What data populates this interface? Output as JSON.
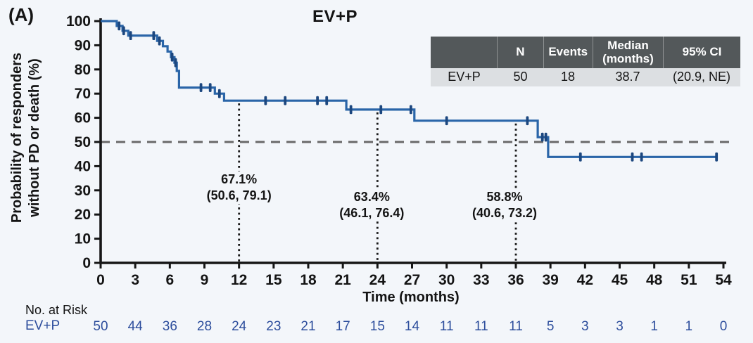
{
  "panel_label": "(A)",
  "chart_data": {
    "type": "line",
    "subtype": "kaplan-meier-step",
    "title": "EV+P",
    "xlabel": "Time (months)",
    "ylabel_line1": "Probability of responders",
    "ylabel_line2": "without PD or death (%)",
    "xlim": [
      0,
      54
    ],
    "ylim": [
      0,
      100
    ],
    "xticks": [
      0,
      3,
      6,
      9,
      12,
      15,
      18,
      21,
      24,
      27,
      30,
      33,
      36,
      39,
      42,
      45,
      48,
      51,
      54
    ],
    "yticks": [
      0,
      10,
      20,
      30,
      40,
      50,
      60,
      70,
      80,
      90,
      100
    ],
    "grid": false,
    "legend": "none",
    "reference_line_y": 50,
    "series": [
      {
        "name": "EV+P",
        "color": "#2a65a8",
        "censor_color": "#1c477f",
        "steps": [
          [
            0,
            100
          ],
          [
            1.4,
            98
          ],
          [
            1.9,
            96
          ],
          [
            2.4,
            94
          ],
          [
            4.9,
            91.8
          ],
          [
            5.4,
            89.6
          ],
          [
            5.8,
            87.4
          ],
          [
            6.1,
            85.1
          ],
          [
            6.4,
            82.8
          ],
          [
            6.6,
            79.4
          ],
          [
            6.8,
            72.5
          ],
          [
            9.9,
            70.0
          ],
          [
            10.7,
            67.1
          ],
          [
            21.3,
            63.4
          ],
          [
            27.2,
            58.8
          ],
          [
            37.9,
            52.0
          ],
          [
            38.8,
            43.8
          ]
        ],
        "end_time": 53.4,
        "censors": [
          [
            1.6,
            98
          ],
          [
            2.0,
            96
          ],
          [
            2.6,
            94
          ],
          [
            4.6,
            94
          ],
          [
            5.1,
            91.8
          ],
          [
            6.2,
            85.1
          ],
          [
            6.5,
            82.8
          ],
          [
            8.7,
            72.5
          ],
          [
            9.5,
            72.5
          ],
          [
            10.3,
            70.0
          ],
          [
            14.3,
            67.1
          ],
          [
            16.0,
            67.1
          ],
          [
            18.8,
            67.1
          ],
          [
            19.6,
            67.1
          ],
          [
            21.7,
            63.4
          ],
          [
            24.3,
            63.4
          ],
          [
            26.9,
            63.4
          ],
          [
            30.0,
            58.8
          ],
          [
            37.0,
            58.8
          ],
          [
            38.3,
            52.0
          ],
          [
            38.6,
            52.0
          ],
          [
            41.6,
            43.8
          ],
          [
            46.1,
            43.8
          ],
          [
            46.9,
            43.8
          ],
          [
            53.4,
            43.8
          ]
        ]
      }
    ],
    "landmarks": [
      {
        "x": 12,
        "pct": "67.1%",
        "ci": "(50.6, 79.1)"
      },
      {
        "x": 24,
        "pct": "63.4%",
        "ci": "(46.1, 76.4)"
      },
      {
        "x": 36,
        "pct": "58.8%",
        "ci": "(40.6, 73.2)"
      }
    ]
  },
  "inset_table": {
    "headers": [
      "",
      "N",
      "Events",
      "Median (months)",
      "95% CI"
    ],
    "rows": [
      [
        "EV+P",
        "50",
        "18",
        "38.7",
        "(20.9, NE)"
      ]
    ]
  },
  "risk_table": {
    "section_label": "No. at Risk",
    "row_label": "EV+P",
    "times": [
      0,
      3,
      6,
      9,
      12,
      15,
      18,
      21,
      24,
      27,
      30,
      33,
      36,
      39,
      42,
      45,
      48,
      51,
      54
    ],
    "values": [
      50,
      44,
      36,
      28,
      24,
      23,
      21,
      17,
      15,
      14,
      11,
      11,
      11,
      5,
      3,
      3,
      1,
      1,
      0
    ],
    "value_color": "#2c4d9c"
  },
  "colors": {
    "background": "#f3f6fa",
    "axis": "#161616",
    "reference_line": "#696969",
    "landmark_line": "#1a1a1a",
    "table_header_bg": "#53585a",
    "table_header_text": "#ffffff",
    "table_row_bg": "#dcdfe2"
  }
}
